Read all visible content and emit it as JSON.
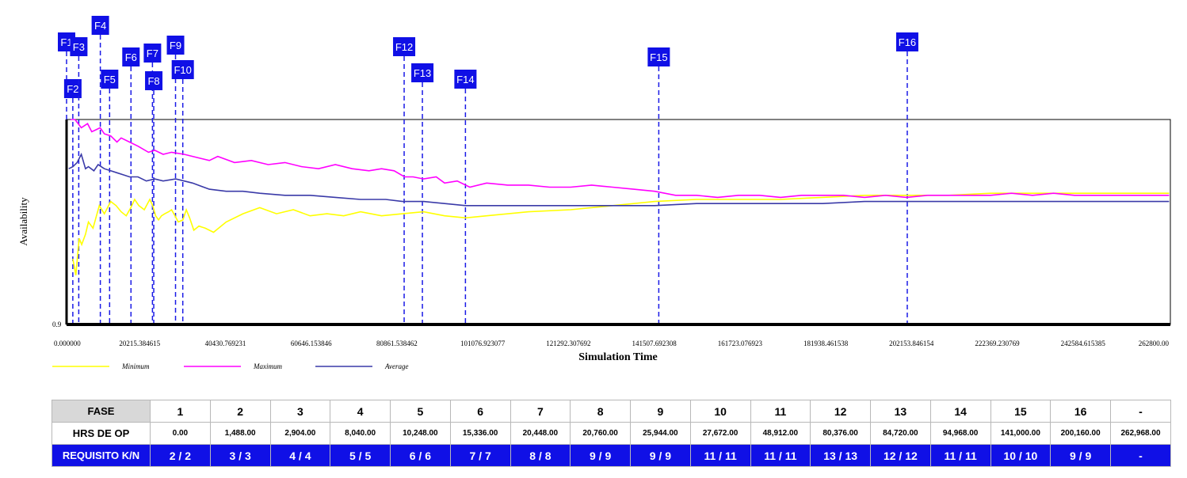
{
  "chart_data": {
    "type": "line",
    "title": "",
    "xlabel": "Simulation Time",
    "ylabel": "Availability",
    "xlim": [
      0,
      262800
    ],
    "ylim": [
      0.9,
      1.0
    ],
    "x_ticks": [
      "0.000000",
      "20215.384615",
      "40430.769231",
      "60646.153846",
      "80861.538462",
      "101076.923077",
      "121292.307692",
      "141507.692308",
      "161723.076923",
      "181938.461538",
      "202153.846154",
      "222369.230769",
      "242584.615385",
      "262800.00"
    ],
    "y_ticks": [
      "0.9"
    ],
    "legend": [
      "Minimum",
      "Maximum",
      "Average"
    ],
    "series": [
      {
        "name": "Minimum",
        "color": "#ffff00",
        "x": [
          1500,
          2200,
          3000,
          3600,
          4500,
          5200,
          6300,
          7800,
          9000,
          10500,
          11800,
          13000,
          14200,
          15300,
          16200,
          17200,
          18500,
          19800,
          20500,
          21200,
          21900,
          22600,
          23400,
          24300,
          25000,
          25800,
          26600,
          27700,
          28500,
          29300,
          30300,
          31500,
          33000,
          35000,
          38000,
          42000,
          46000,
          50000,
          54000,
          58000,
          62000,
          66000,
          70000,
          75000,
          80000,
          85000,
          90000,
          95000,
          100000,
          110000,
          120000,
          130000,
          140000,
          150000,
          160000,
          170000,
          180000,
          190000,
          200000,
          210000,
          220000,
          230000,
          240000,
          250000,
          262500
        ],
        "y": [
          0.932,
          0.924,
          0.942,
          0.939,
          0.944,
          0.95,
          0.947,
          0.958,
          0.954,
          0.96,
          0.958,
          0.955,
          0.953,
          0.957,
          0.961,
          0.958,
          0.956,
          0.961,
          0.958,
          0.953,
          0.951,
          0.953,
          0.954,
          0.955,
          0.956,
          0.953,
          0.95,
          0.951,
          0.956,
          0.952,
          0.946,
          0.948,
          0.947,
          0.945,
          0.95,
          0.954,
          0.957,
          0.954,
          0.956,
          0.953,
          0.954,
          0.953,
          0.955,
          0.953,
          0.954,
          0.955,
          0.953,
          0.952,
          0.953,
          0.955,
          0.956,
          0.958,
          0.96,
          0.961,
          0.961,
          0.961,
          0.962,
          0.963,
          0.963,
          0.963,
          0.964,
          0.964,
          0.964,
          0.964,
          0.964
        ]
      },
      {
        "name": "Maximum",
        "color": "#ff00ff",
        "x": [
          1000,
          2000,
          3500,
          5000,
          6000,
          7000,
          8000,
          9000,
          10500,
          12000,
          13000,
          15000,
          17000,
          19500,
          21000,
          23000,
          25000,
          28000,
          30000,
          34000,
          36000,
          40000,
          44000,
          48000,
          52000,
          56000,
          60000,
          64000,
          68000,
          72000,
          75000,
          78000,
          80500,
          82500,
          85000,
          88000,
          90000,
          93000,
          96000,
          100000,
          105000,
          110000,
          115000,
          120000,
          125000,
          130000,
          135000,
          140000,
          145000,
          150000,
          155000,
          160000,
          165000,
          170000,
          175000,
          180000,
          185000,
          190000,
          195000,
          200000,
          205000,
          210000,
          215000,
          220000,
          225000,
          230000,
          235000,
          240000,
          245000,
          250000,
          255000,
          262500
        ],
        "y": [
          1.0,
          1.0,
          0.996,
          0.998,
          0.994,
          0.995,
          0.996,
          0.993,
          0.992,
          0.989,
          0.991,
          0.989,
          0.987,
          0.984,
          0.985,
          0.983,
          0.984,
          0.983,
          0.982,
          0.98,
          0.982,
          0.979,
          0.98,
          0.978,
          0.979,
          0.977,
          0.976,
          0.978,
          0.976,
          0.975,
          0.976,
          0.975,
          0.972,
          0.972,
          0.971,
          0.972,
          0.969,
          0.97,
          0.967,
          0.969,
          0.968,
          0.968,
          0.967,
          0.967,
          0.968,
          0.967,
          0.966,
          0.965,
          0.963,
          0.963,
          0.962,
          0.963,
          0.963,
          0.962,
          0.963,
          0.963,
          0.963,
          0.962,
          0.963,
          0.962,
          0.963,
          0.963,
          0.963,
          0.963,
          0.964,
          0.963,
          0.964,
          0.963,
          0.963,
          0.963,
          0.963,
          0.963
        ]
      },
      {
        "name": "Average",
        "color": "#3a3aa8",
        "x": [
          500,
          1500,
          2500,
          3500,
          4500,
          5200,
          6500,
          7500,
          9000,
          10500,
          12000,
          13500,
          15000,
          17000,
          19000,
          21000,
          23000,
          26000,
          30000,
          34000,
          38000,
          42000,
          46000,
          52000,
          58000,
          64000,
          70000,
          76000,
          80000,
          85000,
          90000,
          95000,
          100000,
          110000,
          120000,
          130000,
          140000,
          150000,
          160000,
          170000,
          180000,
          190000,
          200000,
          210000,
          220000,
          230000,
          240000,
          250000,
          262500
        ],
        "y": [
          0.976,
          0.977,
          0.979,
          0.983,
          0.976,
          0.977,
          0.975,
          0.978,
          0.976,
          0.975,
          0.974,
          0.973,
          0.972,
          0.972,
          0.97,
          0.971,
          0.97,
          0.971,
          0.969,
          0.966,
          0.965,
          0.965,
          0.964,
          0.963,
          0.963,
          0.962,
          0.961,
          0.961,
          0.96,
          0.96,
          0.959,
          0.958,
          0.958,
          0.958,
          0.958,
          0.958,
          0.958,
          0.959,
          0.959,
          0.959,
          0.959,
          0.96,
          0.96,
          0.96,
          0.96,
          0.96,
          0.96,
          0.96,
          0.96
        ]
      }
    ],
    "phase_markers": [
      {
        "label": "F1",
        "x": 0
      },
      {
        "label": "F2",
        "x": 1488
      },
      {
        "label": "F3",
        "x": 2904
      },
      {
        "label": "F4",
        "x": 8040
      },
      {
        "label": "F5",
        "x": 10248
      },
      {
        "label": "F6",
        "x": 15336
      },
      {
        "label": "F7",
        "x": 20448
      },
      {
        "label": "F8",
        "x": 20760
      },
      {
        "label": "F9",
        "x": 25944
      },
      {
        "label": "F10",
        "x": 27672
      },
      {
        "label": "F12",
        "x": 80376
      },
      {
        "label": "F13",
        "x": 84720
      },
      {
        "label": "F14",
        "x": 94968
      },
      {
        "label": "F15",
        "x": 141000
      },
      {
        "label": "F16",
        "x": 200160
      }
    ]
  },
  "table": {
    "headers": [
      "FASE",
      "HRS DE OP",
      "REQUISITO K/N"
    ],
    "fase": [
      "1",
      "2",
      "3",
      "4",
      "5",
      "6",
      "7",
      "8",
      "9",
      "10",
      "11",
      "12",
      "13",
      "14",
      "15",
      "16",
      "-"
    ],
    "hrs": [
      "0.00",
      "1,488.00",
      "2,904.00",
      "8,040.00",
      "10,248.00",
      "15,336.00",
      "20,448.00",
      "20,760.00",
      "25,944.00",
      "27,672.00",
      "48,912.00",
      "80,376.00",
      "84,720.00",
      "94,968.00",
      "141,000.00",
      "200,160.00",
      "262,968.00"
    ],
    "req": [
      "2 / 2",
      "3 / 3",
      "4 / 4",
      "5 / 5",
      "6 / 6",
      "7 / 7",
      "8 / 8",
      "9 / 9",
      "9 / 9",
      "11 / 11",
      "11 / 11",
      "13 / 13",
      "12 / 12",
      "11 / 11",
      "10 / 10",
      "9 / 9",
      "-"
    ]
  }
}
